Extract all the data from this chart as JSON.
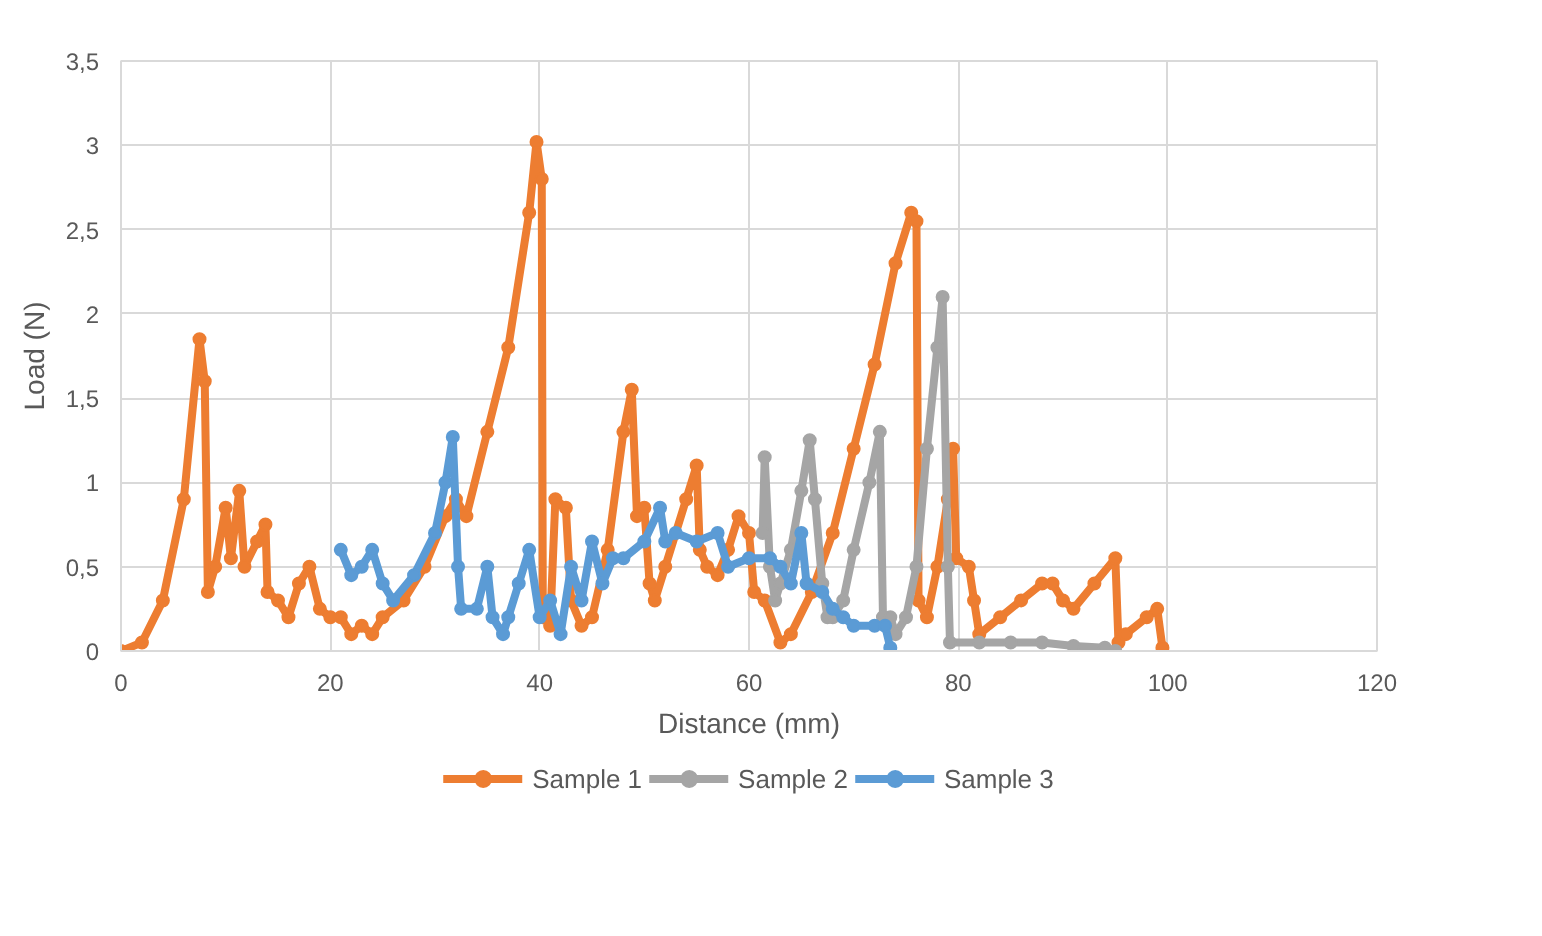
{
  "chart_data": {
    "type": "line",
    "xlabel": "Distance (mm)",
    "ylabel": "Load (N)",
    "xlim": [
      0,
      120
    ],
    "xticks": [
      0,
      20,
      40,
      60,
      80,
      100,
      120
    ],
    "ylim": [
      0,
      3.5
    ],
    "yticks": [
      0,
      {
        "value": 0.5,
        "label": "0,5"
      },
      1,
      {
        "value": 1.5,
        "label": "1,5"
      },
      2,
      {
        "value": 2.5,
        "label": "2,5"
      },
      3,
      {
        "value": 3.5,
        "label": "3,5"
      }
    ],
    "grid": true,
    "legend": "bottom",
    "marker": "circle",
    "line_style": "solid",
    "series": [
      {
        "name": "Sample 1",
        "color": "#ed7d31",
        "x": [
          0,
          2,
          4,
          6,
          7.5,
          8,
          8.3,
          9,
          10,
          10.5,
          11.3,
          11.8,
          13,
          13.8,
          14,
          15,
          16,
          17,
          18,
          19,
          20,
          21,
          22,
          23,
          24,
          25,
          27,
          29,
          31,
          32,
          33,
          35,
          37,
          39,
          39.7,
          40.2,
          40.3,
          41,
          41.5,
          42.5,
          43,
          44,
          45,
          46.5,
          48,
          48.8,
          49.3,
          50,
          50.5,
          51,
          52,
          54,
          55,
          55.3,
          56,
          57,
          58,
          59,
          60,
          60.5,
          61.5,
          63,
          64,
          66,
          68,
          70,
          72,
          74,
          75.5,
          76,
          76.2,
          77,
          78,
          79,
          79.5,
          79.8,
          81,
          81.5,
          82,
          84,
          86,
          88,
          89,
          90,
          91,
          93,
          95,
          95.3,
          96,
          98,
          99,
          99.5
        ],
        "values": [
          0,
          0.05,
          0.3,
          0.9,
          1.85,
          1.6,
          0.35,
          0.5,
          0.85,
          0.55,
          0.95,
          0.5,
          0.65,
          0.75,
          0.35,
          0.3,
          0.2,
          0.4,
          0.5,
          0.25,
          0.2,
          0.2,
          0.1,
          0.15,
          0.1,
          0.2,
          0.3,
          0.5,
          0.8,
          0.9,
          0.8,
          1.3,
          1.8,
          2.6,
          3.02,
          2.8,
          0.2,
          0.15,
          0.9,
          0.85,
          0.3,
          0.15,
          0.2,
          0.6,
          1.3,
          1.55,
          0.8,
          0.85,
          0.4,
          0.3,
          0.5,
          0.9,
          1.1,
          0.6,
          0.5,
          0.45,
          0.6,
          0.8,
          0.7,
          0.35,
          0.3,
          0.05,
          0.1,
          0.35,
          0.7,
          1.2,
          1.7,
          2.3,
          2.6,
          2.55,
          0.3,
          0.2,
          0.5,
          0.9,
          1.2,
          0.55,
          0.5,
          0.3,
          0.1,
          0.2,
          0.3,
          0.4,
          0.4,
          0.3,
          0.25,
          0.4,
          0.55,
          0.05,
          0.1,
          0.2,
          0.25,
          0.02
        ]
      },
      {
        "name": "Sample 2",
        "color": "#a5a5a5",
        "x": [
          61.3,
          61.5,
          62,
          62.5,
          63,
          64,
          65,
          65.8,
          66.3,
          67,
          67.5,
          68,
          69,
          70,
          71.5,
          72.5,
          72.8,
          73.5,
          74,
          75,
          76,
          77,
          78,
          78.5,
          79,
          79.2,
          82,
          85,
          88,
          91,
          94,
          95
        ],
        "values": [
          0.7,
          1.15,
          0.5,
          0.3,
          0.4,
          0.6,
          0.95,
          1.25,
          0.9,
          0.4,
          0.2,
          0.2,
          0.3,
          0.6,
          1.0,
          1.3,
          0.2,
          0.2,
          0.1,
          0.2,
          0.5,
          1.2,
          1.8,
          2.1,
          0.5,
          0.05,
          0.05,
          0.05,
          0.05,
          0.03,
          0.02,
          0
        ]
      },
      {
        "name": "Sample 3",
        "color": "#5b9bd5",
        "x": [
          21,
          22,
          23,
          24,
          25,
          26,
          28,
          30,
          31,
          31.7,
          32.2,
          32.5,
          34,
          35,
          35.5,
          36.5,
          37,
          38,
          39,
          40,
          41,
          42,
          43,
          44,
          45,
          46,
          47,
          48,
          50,
          51.5,
          52,
          53,
          55,
          57,
          58,
          60,
          62,
          63,
          64,
          65,
          65.5,
          67,
          68,
          69,
          70,
          72,
          73,
          73.5
        ],
        "values": [
          0.6,
          0.45,
          0.5,
          0.6,
          0.4,
          0.3,
          0.45,
          0.7,
          1.0,
          1.27,
          0.5,
          0.25,
          0.25,
          0.5,
          0.2,
          0.1,
          0.2,
          0.4,
          0.6,
          0.2,
          0.3,
          0.1,
          0.5,
          0.3,
          0.65,
          0.4,
          0.55,
          0.55,
          0.65,
          0.85,
          0.65,
          0.7,
          0.65,
          0.7,
          0.5,
          0.55,
          0.55,
          0.5,
          0.4,
          0.7,
          0.4,
          0.35,
          0.25,
          0.2,
          0.15,
          0.15,
          0.15,
          0.02
        ]
      }
    ]
  }
}
